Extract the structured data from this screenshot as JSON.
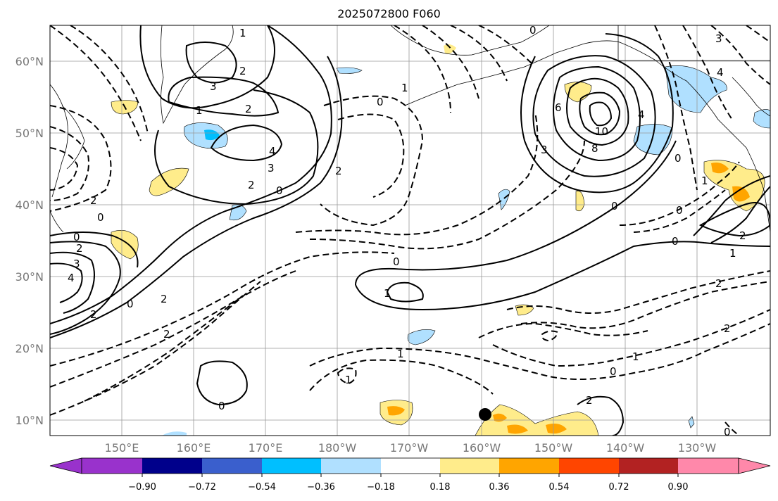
{
  "title": "2025072800 F060",
  "map": {
    "lat_labels": [
      "60°N",
      "50°N",
      "40°N",
      "30°N",
      "20°N",
      "10°N"
    ],
    "lon_labels": [
      "150°E",
      "160°E",
      "170°E",
      "180°W",
      "170°W",
      "160°W",
      "150°W",
      "140°W",
      "130°W"
    ],
    "contour_labels": [
      "1",
      "2",
      "3",
      "1",
      "2",
      "4",
      "3",
      "2",
      "0",
      "2",
      "0",
      "2",
      "3",
      "4",
      "2",
      "0",
      "0",
      "2",
      "2",
      "0",
      "1",
      "2",
      "0",
      "1",
      "0",
      "1",
      "0",
      "6",
      "10",
      "8",
      "4",
      "3",
      "0",
      "0",
      "1",
      "2",
      "2",
      "1",
      "0",
      "3",
      "4",
      "2",
      "0",
      "1",
      "2",
      "0",
      "1",
      "0"
    ],
    "colors": {
      "land_line": "#000000",
      "grid": "#999999",
      "pos_contour": "#000000",
      "neg_contour": "#000000",
      "fill_018": "#ffec8b",
      "fill_036": "#ffa500",
      "fill_neg018": "#b0e0ff",
      "fill_neg036": "#00bfff"
    }
  },
  "colorbar": {
    "ticks": [
      "−0.90",
      "−0.72",
      "−0.54",
      "−0.36",
      "−0.18",
      "0.18",
      "0.36",
      "0.54",
      "0.72",
      "0.90"
    ],
    "colors": [
      "#9932cc",
      "#00008b",
      "#3a5fcd",
      "#00bfff",
      "#b0e0ff",
      "#ffffff",
      "#ffec8b",
      "#ffa500",
      "#ff4500",
      "#b22222",
      "#ff88aa"
    ]
  }
}
